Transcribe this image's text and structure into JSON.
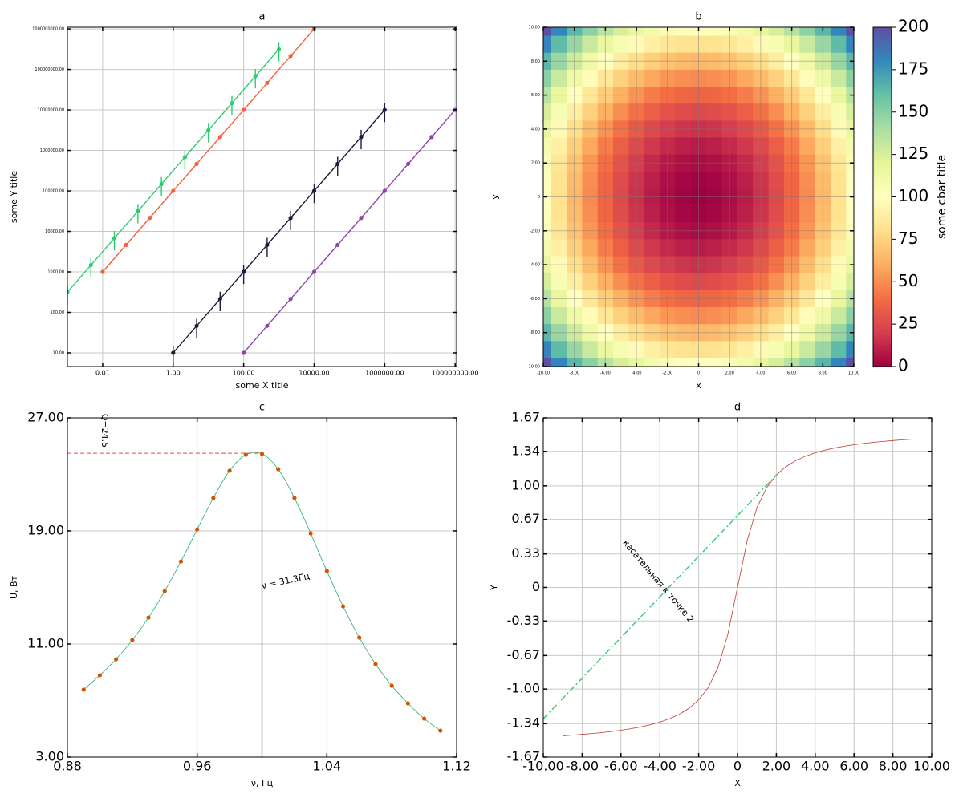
{
  "chart_data": [
    {
      "type": "scatter",
      "title": "a",
      "xlabel": "some X title",
      "ylabel": "some Y title",
      "xlog": true,
      "ylog": true,
      "grid": true,
      "xlim": [
        0.001,
        110000000
      ],
      "ylim": [
        4.6,
        1100000000
      ],
      "xticks": [
        {
          "value": 0.01,
          "label": "0.01"
        },
        {
          "value": 1,
          "label": "1.00"
        },
        {
          "value": 100,
          "label": "100.00"
        },
        {
          "value": 10000,
          "label": "10000.00"
        },
        {
          "value": 1000000,
          "label": "1000000.00"
        },
        {
          "value": 100000000,
          "label": "100000000.00"
        }
      ],
      "yticks": [
        {
          "value": 10,
          "label": "10.00"
        },
        {
          "value": 100,
          "label": "100.00"
        },
        {
          "value": 1000,
          "label": "1000.00"
        },
        {
          "value": 10000,
          "label": "10000.00"
        },
        {
          "value": 100000,
          "label": "100000.00"
        },
        {
          "value": 1000000,
          "label": "1000000.00"
        },
        {
          "value": 10000000,
          "label": "10000000.00"
        },
        {
          "value": 100000000,
          "label": "100000000.00"
        },
        {
          "value": 1000000000,
          "label": "1000000000.00"
        }
      ],
      "series": [
        {
          "color": "#2ecc71",
          "x": [
            0.001,
            0.00464,
            0.0215,
            0.1,
            0.464,
            2.15,
            10,
            46.4,
            215,
            1000
          ],
          "values": [
            316,
            1470,
            6810,
            31600,
            147000,
            681000,
            3160000,
            14700000,
            68100000,
            316000000
          ],
          "errors": [
            158,
            735,
            3400,
            15800,
            73500,
            340000,
            1580000,
            7350000,
            34000000,
            158000000
          ]
        },
        {
          "color": "#f4603c",
          "x": [
            0.01,
            0.0464,
            0.215,
            1,
            4.64,
            21.5,
            100,
            464,
            2150,
            10000
          ],
          "values": [
            1000,
            4640,
            21500,
            100000,
            464000,
            2150000,
            10000000,
            46400000,
            215000000,
            1000000000
          ]
        },
        {
          "color": "#1c1c3c",
          "x": [
            1,
            4.64,
            21.5,
            100,
            464,
            2150,
            10000,
            46400,
            215000,
            1000000
          ],
          "values": [
            10,
            46.4,
            215,
            1000,
            4640,
            21500,
            100000,
            464000,
            2150000,
            10000000
          ],
          "errors": [
            5,
            23.2,
            108,
            500,
            2320,
            10800,
            50000,
            232000,
            1080000,
            5000000
          ]
        },
        {
          "color": "#8e44ad",
          "x": [
            100,
            464,
            2150,
            10000,
            46400,
            215000,
            1000000,
            4640000,
            21500000,
            100000000
          ],
          "values": [
            10,
            46.4,
            215,
            1000,
            4640,
            21500,
            100000,
            464000,
            2150000,
            10000000
          ]
        }
      ]
    },
    {
      "type": "heatmap",
      "title": "b",
      "xlabel": "x",
      "ylabel": "y",
      "grid": true,
      "xlim": [
        -10,
        10
      ],
      "ylim": [
        -10,
        10
      ],
      "xticks": [
        {
          "value": -10,
          "label": "-10.00"
        },
        {
          "value": -8,
          "label": "-8.00"
        },
        {
          "value": -6,
          "label": "-6.00"
        },
        {
          "value": -4,
          "label": "-4.00"
        },
        {
          "value": -2,
          "label": "-2.00"
        },
        0,
        {
          "value": 2,
          "label": "2.00"
        },
        {
          "value": 4,
          "label": "4.00"
        },
        {
          "value": 6,
          "label": "6.00"
        },
        {
          "value": 8,
          "label": "8.00"
        },
        {
          "value": 10,
          "label": "10.00"
        }
      ],
      "yticks": [
        {
          "value": -10,
          "label": "-10.00"
        },
        {
          "value": -8,
          "label": "-8.00"
        },
        {
          "value": -6,
          "label": "-6.00"
        },
        {
          "value": -4,
          "label": "-4.00"
        },
        {
          "value": -2,
          "label": "-2.00"
        },
        0,
        {
          "value": 2,
          "label": "2.00"
        },
        {
          "value": 4,
          "label": "4.00"
        },
        {
          "value": 6,
          "label": "6.00"
        },
        {
          "value": 8,
          "label": "8.00"
        },
        {
          "value": 10,
          "label": "10.00"
        }
      ],
      "x": [
        -10,
        -9,
        -8,
        -7,
        -6,
        -5,
        -4,
        -3,
        -2,
        -1,
        0,
        1,
        2,
        3,
        4,
        5,
        6,
        7,
        8,
        9,
        10
      ],
      "y": [
        10,
        9,
        8,
        7,
        6,
        5,
        4,
        3,
        2,
        1,
        0,
        -1,
        -2,
        -3,
        -4,
        -5,
        -6,
        -7,
        -8,
        -9,
        -10
      ],
      "z": [
        [
          200,
          181,
          164,
          149,
          136,
          125,
          116,
          109,
          104,
          101,
          100,
          101,
          104,
          109,
          116,
          125,
          136,
          149,
          164,
          181,
          200
        ],
        [
          181,
          162,
          145,
          130,
          117,
          106,
          97,
          90,
          85,
          82,
          81,
          82,
          85,
          90,
          97,
          106,
          117,
          130,
          145,
          162,
          181
        ],
        [
          164,
          145,
          128,
          113,
          100,
          89,
          80,
          73,
          68,
          65,
          64,
          65,
          68,
          73,
          80,
          89,
          100,
          113,
          128,
          145,
          164
        ],
        [
          149,
          130,
          113,
          98,
          85,
          74,
          65,
          58,
          53,
          50,
          49,
          50,
          53,
          58,
          65,
          74,
          85,
          98,
          113,
          130,
          149
        ],
        [
          136,
          117,
          100,
          85,
          72,
          61,
          52,
          45,
          40,
          37,
          36,
          37,
          40,
          45,
          52,
          61,
          72,
          85,
          100,
          117,
          136
        ],
        [
          125,
          106,
          89,
          74,
          61,
          50,
          41,
          34,
          29,
          26,
          25,
          26,
          29,
          34,
          41,
          50,
          61,
          74,
          89,
          106,
          125
        ],
        [
          116,
          97,
          80,
          65,
          52,
          41,
          32,
          25,
          20,
          17,
          16,
          17,
          20,
          25,
          32,
          41,
          52,
          65,
          80,
          97,
          116
        ],
        [
          109,
          90,
          73,
          58,
          45,
          34,
          25,
          18,
          13,
          10,
          9,
          10,
          13,
          18,
          25,
          34,
          45,
          58,
          73,
          90,
          109
        ],
        [
          104,
          85,
          68,
          53,
          40,
          29,
          20,
          13,
          8,
          5,
          4,
          5,
          8,
          13,
          20,
          29,
          40,
          53,
          68,
          85,
          104
        ],
        [
          101,
          82,
          65,
          50,
          37,
          26,
          17,
          10,
          5,
          2,
          1,
          2,
          5,
          10,
          17,
          26,
          37,
          50,
          65,
          82,
          101
        ],
        [
          100,
          81,
          64,
          49,
          36,
          25,
          16,
          9,
          4,
          1,
          0,
          1,
          4,
          9,
          16,
          25,
          36,
          49,
          64,
          81,
          100
        ],
        [
          101,
          82,
          65,
          50,
          37,
          26,
          17,
          10,
          5,
          2,
          1,
          2,
          5,
          10,
          17,
          26,
          37,
          50,
          65,
          82,
          101
        ],
        [
          104,
          85,
          68,
          53,
          40,
          29,
          20,
          13,
          8,
          5,
          4,
          5,
          8,
          13,
          20,
          29,
          40,
          53,
          68,
          85,
          104
        ],
        [
          109,
          90,
          73,
          58,
          45,
          34,
          25,
          18,
          13,
          10,
          9,
          10,
          13,
          18,
          25,
          34,
          45,
          58,
          73,
          90,
          109
        ],
        [
          116,
          97,
          80,
          65,
          52,
          41,
          32,
          25,
          20,
          17,
          16,
          17,
          20,
          25,
          32,
          41,
          52,
          65,
          80,
          97,
          116
        ],
        [
          125,
          106,
          89,
          74,
          61,
          50,
          41,
          34,
          29,
          26,
          25,
          26,
          29,
          34,
          41,
          50,
          61,
          74,
          89,
          106,
          125
        ],
        [
          136,
          117,
          100,
          85,
          72,
          61,
          52,
          45,
          40,
          37,
          36,
          37,
          40,
          45,
          52,
          61,
          72,
          85,
          100,
          117,
          136
        ],
        [
          149,
          130,
          113,
          98,
          85,
          74,
          65,
          58,
          53,
          50,
          49,
          50,
          53,
          58,
          65,
          74,
          85,
          98,
          113,
          130,
          149
        ],
        [
          164,
          145,
          128,
          113,
          100,
          89,
          80,
          73,
          68,
          65,
          64,
          65,
          68,
          73,
          80,
          89,
          100,
          113,
          128,
          145,
          164
        ],
        [
          181,
          162,
          145,
          130,
          117,
          106,
          97,
          90,
          85,
          82,
          81,
          82,
          85,
          90,
          97,
          106,
          117,
          130,
          145,
          162,
          181
        ],
        [
          200,
          181,
          164,
          149,
          136,
          125,
          116,
          109,
          104,
          101,
          100,
          101,
          104,
          109,
          116,
          125,
          136,
          149,
          164,
          181,
          200
        ]
      ],
      "clim": [
        0,
        200
      ],
      "cticks": [
        0,
        25,
        50,
        75,
        100,
        125,
        150,
        175,
        200
      ],
      "clabel": "some cbar title",
      "colormap": [
        "#9e0142",
        "#d53e4f",
        "#f46d43",
        "#fdae61",
        "#fee08b",
        "#ffffbf",
        "#e6f598",
        "#abdda4",
        "#66c2a5",
        "#3288bd",
        "#5e4fa2"
      ]
    },
    {
      "type": "line",
      "title": "c",
      "xlabel": "ν, Гц",
      "ylabel": "U, Вт",
      "grid": true,
      "xlim": [
        0.88,
        1.12
      ],
      "ylim": [
        3,
        27
      ],
      "xticks": [
        0.88,
        0.96,
        1.04,
        1.12
      ],
      "yticks": [
        {
          "value": 3,
          "label": "3.00"
        },
        {
          "value": 11,
          "label": "11.00"
        },
        {
          "value": 19,
          "label": "19.00"
        },
        {
          "value": 27,
          "label": "27.00"
        }
      ],
      "series": [
        {
          "color": "#27ae60",
          "marker_color": "#d35400",
          "smooth": true,
          "marker": true,
          "x": [
            0.89,
            0.9,
            0.91,
            0.92,
            0.93,
            0.94,
            0.95,
            0.96,
            0.97,
            0.98,
            0.99,
            1.0,
            1.01,
            1.02,
            1.03,
            1.04,
            1.05,
            1.06,
            1.07,
            1.08,
            1.09,
            1.1,
            1.11
          ],
          "values": [
            7.77,
            8.79,
            9.92,
            11.28,
            12.87,
            14.74,
            16.84,
            19.11,
            21.33,
            23.26,
            24.39,
            24.45,
            23.37,
            21.33,
            18.83,
            16.16,
            13.67,
            11.45,
            9.58,
            8.05,
            6.8,
            5.72,
            4.87
          ]
        }
      ],
      "hline": {
        "value": 24.5,
        "color": "#e74c3c"
      },
      "vline": {
        "value": 1.0,
        "color": "#000000"
      },
      "annotations": [
        "Q=24.5",
        "ν = 31.3Гц"
      ]
    },
    {
      "type": "line",
      "title": "d",
      "xlabel": "X",
      "ylabel": "Y",
      "grid": true,
      "xlim": [
        -10,
        10
      ],
      "ylim": [
        -1.67,
        1.67
      ],
      "xticks": [
        {
          "value": -10,
          "label": "-10.00"
        },
        {
          "value": -8,
          "label": "-8.00"
        },
        {
          "value": -6,
          "label": "-6.00"
        },
        {
          "value": -4,
          "label": "-4.00"
        },
        {
          "value": -2,
          "label": "-2.00"
        },
        0,
        {
          "value": 2,
          "label": "2.00"
        },
        {
          "value": 4,
          "label": "4.00"
        },
        {
          "value": 6,
          "label": "6.00"
        },
        {
          "value": 8,
          "label": "8.00"
        },
        {
          "value": 10,
          "label": "10.00"
        }
      ],
      "yticks": [
        -1.67,
        -1.34,
        {
          "value": -1,
          "label": "-1.00"
        },
        -0.67,
        -0.33,
        0,
        0.33,
        0.67,
        {
          "value": 1,
          "label": "1.00"
        },
        1.34,
        1.67
      ],
      "series": [
        {
          "color": "#c0392b",
          "x": [
            -9,
            -8.5,
            -8,
            -7.5,
            -7,
            -6.5,
            -6,
            -5.5,
            -5,
            -4.5,
            -4,
            -3.5,
            -3,
            -2.5,
            -2,
            -1.5,
            -1,
            -0.5,
            0,
            0.5,
            1,
            1.5,
            2,
            2.5,
            3,
            3.5,
            4,
            4.5,
            5,
            5.5,
            6,
            6.5,
            7,
            7.5,
            8,
            8.5,
            9
          ],
          "values": [
            -1.4601,
            -1.4537,
            -1.4464,
            -1.4382,
            -1.4289,
            -1.4181,
            -1.4056,
            -1.3909,
            -1.3734,
            -1.3521,
            -1.3258,
            -1.2925,
            -1.249,
            -1.1903,
            -1.1071,
            -0.9828,
            -0.7854,
            -0.4636,
            0,
            0.4636,
            0.7854,
            0.9828,
            1.1071,
            1.1903,
            1.249,
            1.2925,
            1.3258,
            1.3521,
            1.3734,
            1.3909,
            1.4056,
            1.4181,
            1.4289,
            1.4382,
            1.4464,
            1.4537,
            1.4601
          ]
        },
        {
          "color": "#2ecc71",
          "dash": true,
          "x": [
            -10,
            2
          ],
          "values": [
            -1.2929,
            1.1071
          ]
        }
      ],
      "annotations": [
        "касательная к точке 2"
      ]
    }
  ]
}
